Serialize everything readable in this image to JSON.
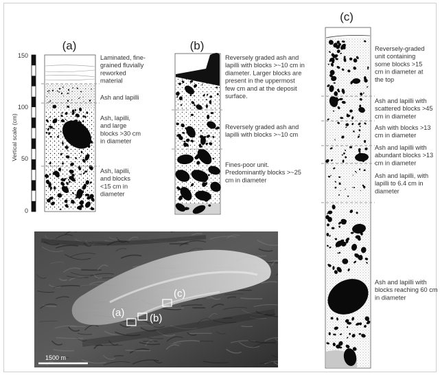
{
  "figure": {
    "vertical_scale_label": "Vertical scale (cm)",
    "scale_ticks": [
      "150",
      "100",
      "50",
      "0"
    ],
    "panels": {
      "a": {
        "label": "(a)",
        "units": [
          [
            "Laminated, fine-",
            "grained fluvially",
            "reworked",
            "material"
          ],
          [
            "Ash and lapilli"
          ],
          [
            "Ash, lapilli,",
            "and large",
            "blocks >30 cm",
            "in diameter"
          ],
          [
            "Ash, lapilli,",
            "and blocks",
            "<15 cm in",
            "diameter"
          ]
        ]
      },
      "b": {
        "label": "(b)",
        "units": [
          [
            "Reversely graded ash and",
            "lapilli with blocks >~10 cm in",
            "diameter. Larger blocks are",
            "present in the uppermost",
            "few cm and at the deposit",
            "surface."
          ],
          [
            "Reversely graded ash and",
            "lapilli with blocks >~10 cm"
          ],
          [
            "Fines-poor unit.",
            "Predominantly blocks >~25",
            "cm in diameter"
          ]
        ]
      },
      "c": {
        "label": "(c)",
        "units": [
          [
            "Reversely-graded",
            "unit containing",
            "some blocks >15",
            "cm in diameter at",
            "the top"
          ],
          [
            "Ash and lapilli with",
            "scattered blocks >45",
            "cm in diameter"
          ],
          [
            "Ash with blocks >13",
            "cm in diameter"
          ],
          [
            "Ash and lapilli with",
            "abundant blocks >13",
            "cm in diameter"
          ],
          [
            "Ash and lapilli, with",
            "lapilli to 6.4 cm in",
            "diameter"
          ],
          [
            "Ash and lapilli with",
            "blocks reaching 60 cm",
            "in diameter"
          ]
        ]
      }
    },
    "map": {
      "scale_bar_label": "1500 m",
      "location_labels": [
        "(a)",
        "(b)",
        "(c)"
      ]
    }
  }
}
